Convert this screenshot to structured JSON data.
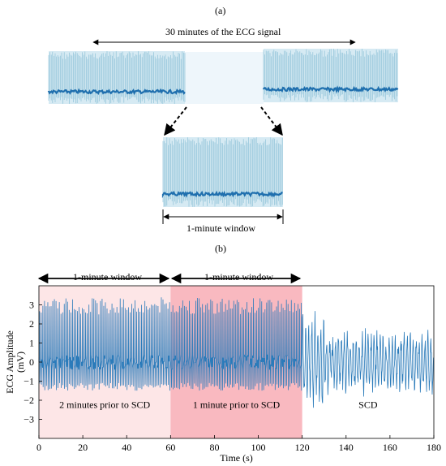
{
  "panel_a": {
    "label": "(a)",
    "span_label": "30 minutes of the ECG signal",
    "window_label": "1-minute window"
  },
  "panel_b": {
    "label": "(b)",
    "window_labels": [
      "1-minute window",
      "1-minute window"
    ],
    "region_labels": [
      "2 minutes prior to SCD",
      "1 minute prior to SCD",
      "SCD"
    ],
    "colors": {
      "region1": "#fde6e7",
      "region2": "#f9b9c0",
      "signal": "#2b7bba"
    }
  },
  "chart_data": {
    "type": "line",
    "xlabel": "Time (s)",
    "ylabel": "ECG Amplitude (mV)",
    "xlim": [
      0,
      180
    ],
    "ylim": [
      -4,
      4
    ],
    "xticks": [
      0,
      20,
      40,
      60,
      80,
      100,
      120,
      140,
      160,
      180
    ],
    "yticks": [
      -3,
      -2,
      -1,
      0,
      1,
      2,
      3
    ],
    "regions": [
      {
        "label": "2 minutes prior to SCD",
        "x": [
          0,
          60
        ]
      },
      {
        "label": "1 minute prior to SCD",
        "x": [
          60,
          120
        ]
      },
      {
        "label": "SCD",
        "x": [
          120,
          180
        ]
      }
    ],
    "series": [
      {
        "segments": [
          {
            "x": [
              0,
              120
            ],
            "description": "regular beats, R peaks ~3 mV, troughs ~-1.3 mV, baseline ~0"
          },
          {
            "x": [
              120,
              180
            ],
            "description": "irregular fibrillatory waveform, amplitude roughly -3 to 2.5 mV"
          }
        ]
      }
    ]
  }
}
